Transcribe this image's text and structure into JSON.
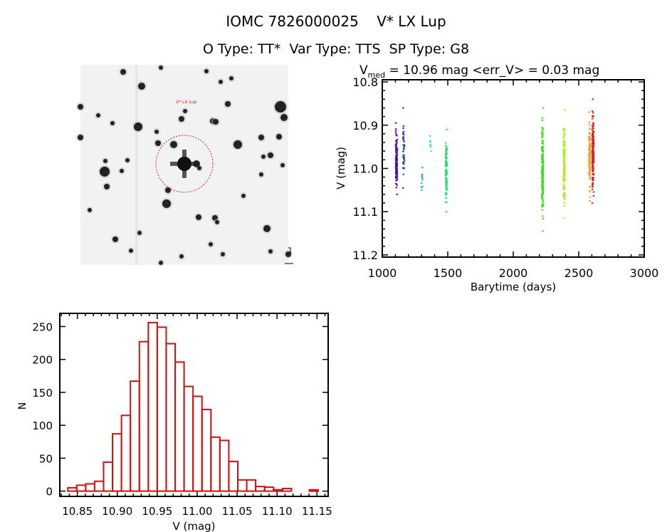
{
  "header": {
    "title_line1": "IOMC 7826000025    V* LX Lup",
    "title_line2": "O Type: TT*  Var Type: TTS  SP Type: G8"
  },
  "image_panel": {
    "target_label": "V* LX Lup",
    "marker_color": "#cc2222"
  },
  "chart_data": [
    {
      "type": "scatter",
      "title": "V_med = 10.96 mag <err_V> = 0.03 mag",
      "title_parts": {
        "v": "V",
        "sub": "med",
        "rest": " = 10.96 mag <err_V> = 0.03 mag"
      },
      "xlabel": "Barytime (days)",
      "ylabel": "V (mag)",
      "xlim": [
        1000,
        3000
      ],
      "ylim": [
        11.205,
        10.795
      ],
      "xticks": [
        "1000",
        "1500",
        "2000",
        "2500",
        "3000"
      ],
      "yticks": [
        "10.8",
        "10.9",
        "11.0",
        "11.1",
        "11.2"
      ],
      "clusters": [
        {
          "x": 1110,
          "v_min": 10.895,
          "v_max": 11.06,
          "n": 120,
          "color": "#4a14a0"
        },
        {
          "x": 1165,
          "v_min": 10.86,
          "v_max": 11.045,
          "n": 40,
          "color": "#1f4aa0"
        },
        {
          "x": 1305,
          "v_min": 10.998,
          "v_max": 11.05,
          "n": 10,
          "color": "#30a8c8"
        },
        {
          "x": 1370,
          "v_min": 10.925,
          "v_max": 10.96,
          "n": 10,
          "color": "#40e0d0"
        },
        {
          "x": 1490,
          "v_min": 10.91,
          "v_max": 11.1,
          "n": 90,
          "color": "#20e070"
        },
        {
          "x": 2225,
          "v_min": 10.86,
          "v_max": 11.145,
          "n": 200,
          "color": "#40e020"
        },
        {
          "x": 2390,
          "v_min": 10.865,
          "v_max": 11.115,
          "n": 150,
          "color": "#a8f020"
        },
        {
          "x": 2585,
          "v_min": 10.87,
          "v_max": 11.075,
          "n": 120,
          "color": "#f0a020"
        },
        {
          "x": 2610,
          "v_min": 10.84,
          "v_max": 11.08,
          "n": 160,
          "color": "#e02020"
        }
      ]
    },
    {
      "type": "bar",
      "style": "histogram",
      "xlabel": "V (mag)",
      "ylabel": "N",
      "xlim": [
        10.828,
        11.164
      ],
      "ylim": [
        -8,
        270
      ],
      "xticks": [
        "10.85",
        "10.90",
        "10.95",
        "11.00",
        "11.05",
        "11.10",
        "11.15"
      ],
      "yticks": [
        "0",
        "50",
        "100",
        "150",
        "200",
        "250"
      ],
      "bin_start": 10.838,
      "bin_width": 0.0112,
      "values": [
        5,
        9,
        11,
        15,
        44,
        87,
        115,
        167,
        227,
        256,
        249,
        224,
        196,
        159,
        144,
        124,
        82,
        77,
        45,
        17,
        17,
        7,
        6,
        2,
        4,
        0,
        0,
        2
      ],
      "bar_color": "#cc1111"
    }
  ]
}
